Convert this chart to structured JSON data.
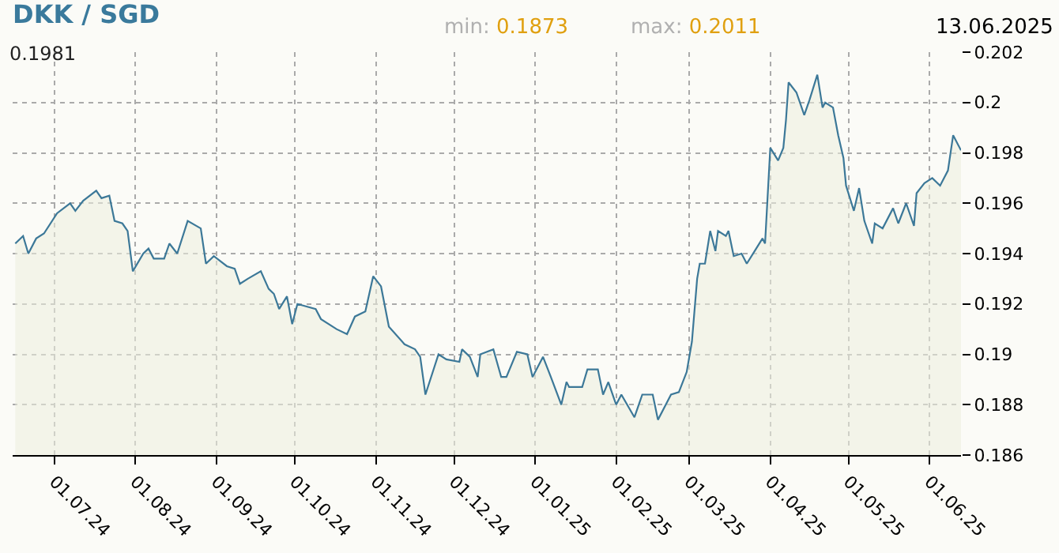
{
  "chart_data": {
    "type": "area",
    "title": "DKK / SGD",
    "annotations": [
      "min: 0.1873",
      "max: 0.2011",
      "13.06.2025",
      "0.1981"
    ],
    "x": [
      "2024-06-16",
      "2024-06-19",
      "2024-06-21",
      "2024-06-24",
      "2024-06-27",
      "2024-07-02",
      "2024-07-07",
      "2024-07-09",
      "2024-07-12",
      "2024-07-17",
      "2024-07-19",
      "2024-07-22",
      "2024-07-24",
      "2024-07-27",
      "2024-07-29",
      "2024-07-31",
      "2024-08-04",
      "2024-08-06",
      "2024-08-08",
      "2024-08-12",
      "2024-08-14",
      "2024-08-17",
      "2024-08-21",
      "2024-08-26",
      "2024-08-28",
      "2024-08-31",
      "2024-09-05",
      "2024-09-08",
      "2024-09-10",
      "2024-09-13",
      "2024-09-18",
      "2024-09-21",
      "2024-09-23",
      "2024-09-25",
      "2024-09-28",
      "2024-09-30",
      "2024-10-02",
      "2024-10-09",
      "2024-10-11",
      "2024-10-17",
      "2024-10-21",
      "2024-10-24",
      "2024-10-28",
      "2024-10-31",
      "2024-11-03",
      "2024-11-06",
      "2024-11-12",
      "2024-11-16",
      "2024-11-18",
      "2024-11-20",
      "2024-11-25",
      "2024-11-28",
      "2024-12-03",
      "2024-12-04",
      "2024-12-07",
      "2024-12-10",
      "2024-12-11",
      "2024-12-16",
      "2024-12-19",
      "2024-12-21",
      "2024-12-25",
      "2024-12-29",
      "2024-12-31",
      "2025-01-04",
      "2025-01-07",
      "2025-01-11",
      "2025-01-13",
      "2025-01-14",
      "2025-01-19",
      "2025-01-21",
      "2025-01-25",
      "2025-01-27",
      "2025-01-29",
      "2025-02-01",
      "2025-02-03",
      "2025-02-08",
      "2025-02-11",
      "2025-02-15",
      "2025-02-17",
      "2025-02-22",
      "2025-02-25",
      "2025-02-28",
      "2025-03-02",
      "2025-03-04",
      "2025-03-05",
      "2025-03-07",
      "2025-03-09",
      "2025-03-11",
      "2025-03-12",
      "2025-03-15",
      "2025-03-16",
      "2025-03-18",
      "2025-03-21",
      "2025-03-23",
      "2025-03-26",
      "2025-03-29",
      "2025-03-30",
      "2025-04-01",
      "2025-04-04",
      "2025-04-06",
      "2025-04-07",
      "2025-04-08",
      "2025-04-11",
      "2025-04-14",
      "2025-04-16",
      "2025-04-19",
      "2025-04-21",
      "2025-04-22",
      "2025-04-25",
      "2025-04-27",
      "2025-04-29",
      "2025-04-30",
      "2025-05-03",
      "2025-05-05",
      "2025-05-07",
      "2025-05-10",
      "2025-05-11",
      "2025-05-14",
      "2025-05-18",
      "2025-05-20",
      "2025-05-23",
      "2025-05-26",
      "2025-05-27",
      "2025-05-30",
      "2025-06-02",
      "2025-06-05",
      "2025-06-08",
      "2025-06-10",
      "2025-06-13"
    ],
    "series": [
      {
        "color": "#3c7898",
        "values": [
          0.1944,
          0.1947,
          0.194,
          0.1946,
          0.1948,
          0.1956,
          0.196,
          0.1957,
          0.1961,
          0.1965,
          0.1962,
          0.1963,
          0.1953,
          0.1952,
          0.1949,
          0.1933,
          0.194,
          0.1942,
          0.1938,
          0.1938,
          0.1944,
          0.194,
          0.1953,
          0.195,
          0.1936,
          0.1939,
          0.1935,
          0.1934,
          0.1928,
          0.193,
          0.1933,
          0.1926,
          0.1924,
          0.1918,
          0.1923,
          0.1912,
          0.192,
          0.1918,
          0.1914,
          0.191,
          0.1908,
          0.1915,
          0.1917,
          0.1931,
          0.1927,
          0.1911,
          0.1904,
          0.1902,
          0.1899,
          0.1884,
          0.19,
          0.1898,
          0.1897,
          0.1902,
          0.1899,
          0.1891,
          0.19,
          0.1902,
          0.1891,
          0.1891,
          0.1901,
          0.19,
          0.1891,
          0.1899,
          0.1891,
          0.188,
          0.1889,
          0.1887,
          0.1887,
          0.1894,
          0.1894,
          0.1884,
          0.1889,
          0.188,
          0.1884,
          0.1875,
          0.1884,
          0.1884,
          0.1874,
          0.1884,
          0.1885,
          0.1893,
          0.1905,
          0.193,
          0.1936,
          0.1936,
          0.1949,
          0.1941,
          0.1949,
          0.1947,
          0.1949,
          0.1939,
          0.194,
          0.1936,
          0.1941,
          0.1946,
          0.1944,
          0.1982,
          0.1977,
          0.1982,
          0.1993,
          0.2008,
          0.2004,
          0.1995,
          0.2001,
          0.2011,
          0.1998,
          0.2,
          0.1998,
          0.1987,
          0.1978,
          0.1967,
          0.1957,
          0.1966,
          0.1953,
          0.1944,
          0.1952,
          0.195,
          0.1958,
          0.1952,
          0.196,
          0.1951,
          0.1964,
          0.1968,
          0.197,
          0.1967,
          0.1973,
          0.1987,
          0.1981
        ]
      }
    ],
    "xlim": [
      "2024-06-15",
      "2025-06-13"
    ],
    "xticks": [
      {
        "value": "2024-07-01",
        "label": "01.07.24"
      },
      {
        "value": "2024-08-01",
        "label": "01.08.24"
      },
      {
        "value": "2024-09-01",
        "label": "01.09.24"
      },
      {
        "value": "2024-10-01",
        "label": "01.10.24"
      },
      {
        "value": "2024-11-01",
        "label": "01.11.24"
      },
      {
        "value": "2024-12-01",
        "label": "01.12.24"
      },
      {
        "value": "2025-01-01",
        "label": "01.01.25"
      },
      {
        "value": "2025-02-01",
        "label": "01.02.25"
      },
      {
        "value": "2025-03-01",
        "label": "01.03.25"
      },
      {
        "value": "2025-04-01",
        "label": "01.04.25"
      },
      {
        "value": "2025-05-01",
        "label": "01.05.25"
      },
      {
        "value": "2025-06-01",
        "label": "01.06.25"
      }
    ],
    "ylim": [
      0.186,
      0.202
    ],
    "yticks": [
      0.186,
      0.188,
      {
        "value": 0.19,
        "label": "0.19"
      },
      0.192,
      0.194,
      0.196,
      0.198,
      {
        "value": 0.2,
        "label": "0.2"
      },
      0.202
    ],
    "grid": true,
    "marker": "none",
    "line_style": "solid"
  }
}
